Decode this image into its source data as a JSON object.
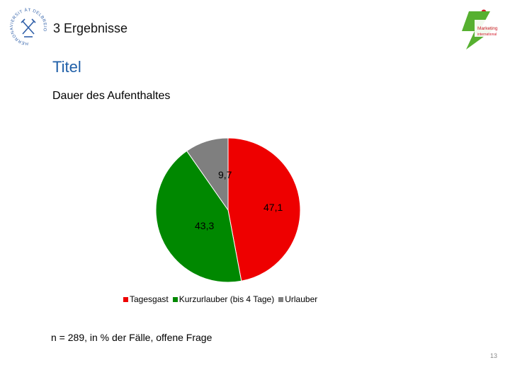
{
  "header": {
    "label": "3 Ergebnisse"
  },
  "logos": {
    "left": {
      "name": "university-seal",
      "arc_text": "HERRONAVIERSIT ÄT DELBREIO"
    },
    "right": {
      "name": "marketing-logo",
      "text_line1": "Marketing",
      "text_line2": "international"
    }
  },
  "slide": {
    "title": "Titel",
    "subtitle": "Dauer des Aufenthaltes",
    "footnote": "n = 289, in % der Fälle, offene Frage",
    "page_number": "13"
  },
  "chart_data": {
    "type": "pie",
    "title": "",
    "slices": [
      {
        "name": "Tagesgast",
        "value": 47.1,
        "label": "47,1",
        "color": "#ee0000"
      },
      {
        "name": "Kurzurlauber (bis 4 Tage)",
        "value": 43.3,
        "label": "43,3",
        "color": "#008800"
      },
      {
        "name": "Urlauber",
        "value": 9.7,
        "label": "9,7",
        "color": "#7f7f7f"
      }
    ],
    "legend_placement": "bottom"
  }
}
